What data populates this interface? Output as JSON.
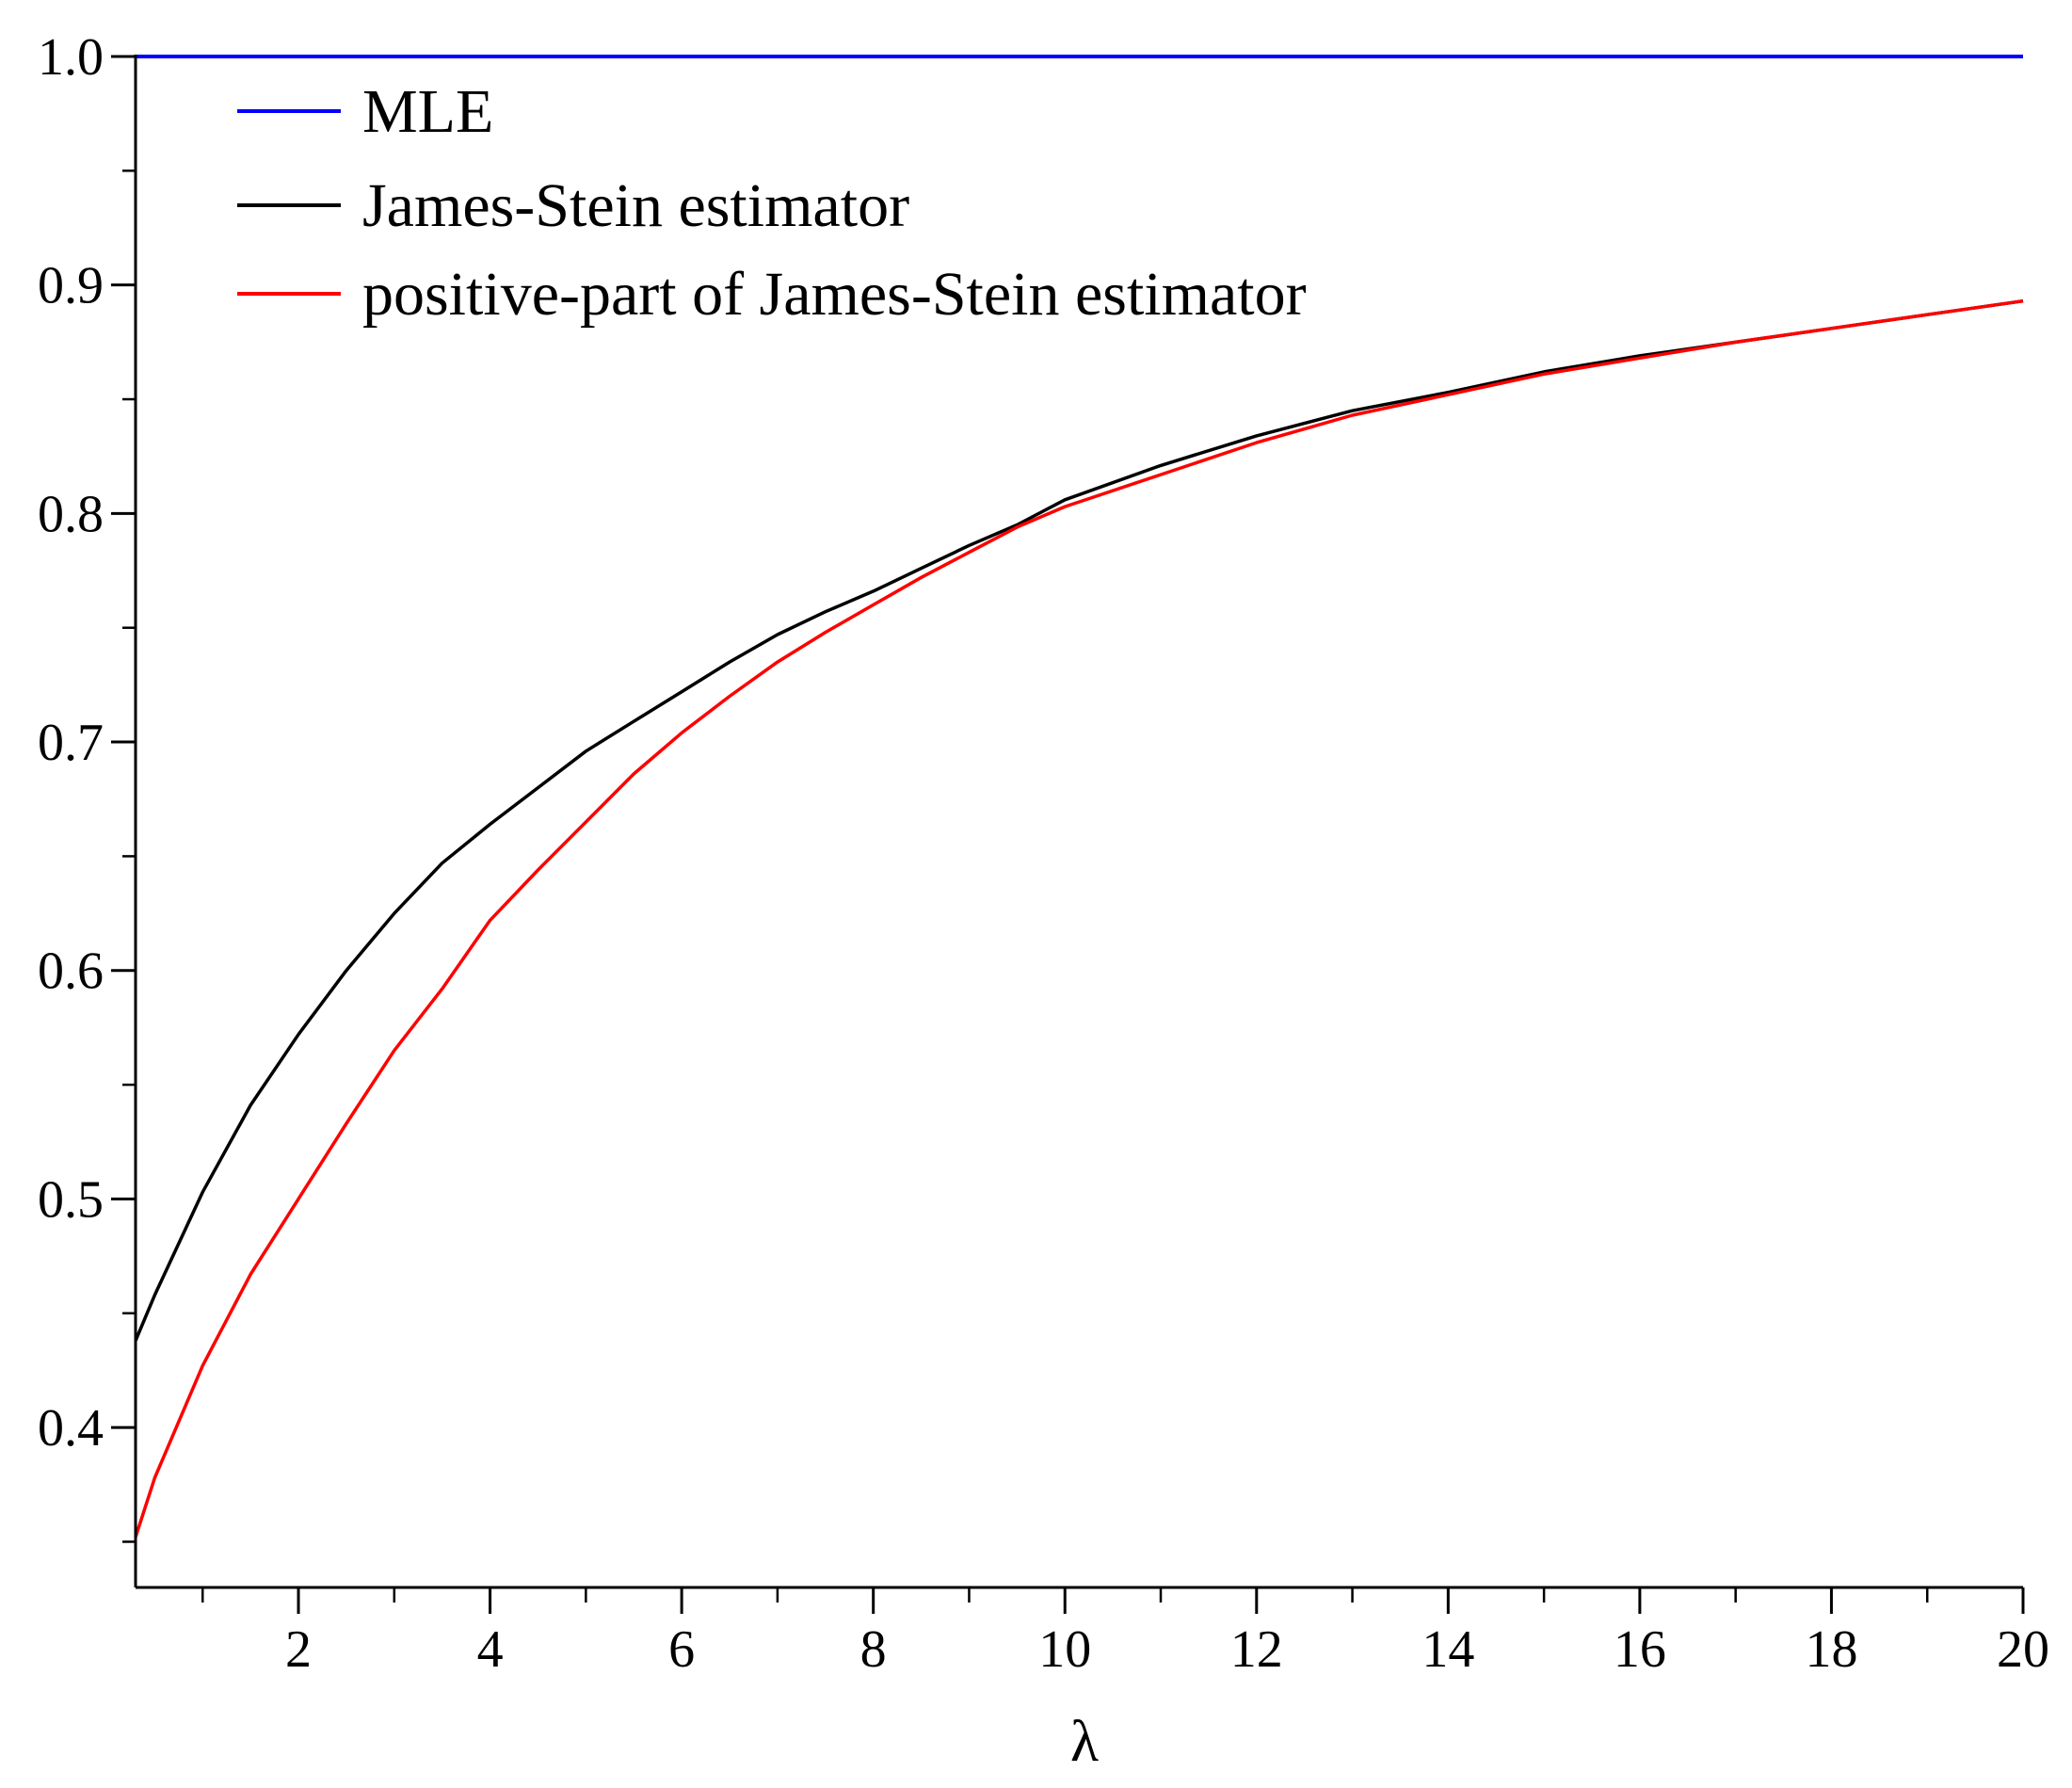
{
  "chart_data": {
    "type": "line",
    "xlabel": "λ",
    "ylabel": "",
    "xlim": [
      0.3,
      20
    ],
    "ylim": [
      0.33,
      1.0
    ],
    "x_ticks": [
      {
        "value": 2,
        "label": "2"
      },
      {
        "value": 4,
        "label": "4"
      },
      {
        "value": 6,
        "label": "6"
      },
      {
        "value": 8,
        "label": "8"
      },
      {
        "value": 10,
        "label": "10"
      },
      {
        "value": 12,
        "label": "12"
      },
      {
        "value": 14,
        "label": "14"
      },
      {
        "value": 16,
        "label": "16"
      },
      {
        "value": 18,
        "label": "18"
      },
      {
        "value": 20,
        "label": "20"
      }
    ],
    "x_minor_ticks": [
      1,
      3,
      5,
      7,
      9,
      11,
      13,
      15,
      17,
      19
    ],
    "y_ticks": [
      {
        "value": 0.4,
        "label": "0.4"
      },
      {
        "value": 0.5,
        "label": "0.5"
      },
      {
        "value": 0.6,
        "label": "0.6"
      },
      {
        "value": 0.7,
        "label": "0.7"
      },
      {
        "value": 0.8,
        "label": "0.8"
      },
      {
        "value": 0.9,
        "label": "0.9"
      },
      {
        "value": 1.0,
        "label": "1.0"
      }
    ],
    "y_minor_ticks": [
      0.35,
      0.45,
      0.55,
      0.65,
      0.75,
      0.85,
      0.95
    ],
    "grid": false,
    "legend_position": "top-left",
    "series": [
      {
        "name": "MLE",
        "color": "#0000ff",
        "x": [
          0.3,
          20
        ],
        "y": [
          1.0,
          1.0
        ]
      },
      {
        "name": "James-Stein estimator",
        "color": "#000000",
        "x": [
          0.3,
          0.5,
          1,
          1.5,
          2,
          2.5,
          3,
          3.5,
          4,
          4.5,
          5,
          5.5,
          6,
          6.5,
          7,
          7.5,
          8,
          8.5,
          9,
          9.5,
          10,
          11,
          12,
          13,
          14,
          15,
          16,
          17,
          18,
          19,
          20
        ],
        "y": [
          0.438,
          0.458,
          0.503,
          0.541,
          0.572,
          0.6,
          0.625,
          0.647,
          0.664,
          0.68,
          0.696,
          0.709,
          0.722,
          0.735,
          0.747,
          0.757,
          0.766,
          0.776,
          0.786,
          0.795,
          0.806,
          0.821,
          0.834,
          0.845,
          0.853,
          0.862,
          0.869,
          0.875,
          0.881,
          0.887,
          0.893
        ]
      },
      {
        "name": "positive-part of James-Stein estimator",
        "color": "#ff0000",
        "x": [
          0.3,
          0.5,
          1,
          1.5,
          2,
          2.5,
          3,
          3.5,
          4,
          4.5,
          5,
          5.5,
          6,
          6.5,
          7,
          7.5,
          8,
          8.5,
          9,
          9.5,
          10,
          11,
          12,
          13,
          14,
          15,
          16,
          17,
          18,
          19,
          20
        ],
        "y": [
          0.352,
          0.378,
          0.427,
          0.467,
          0.5,
          0.533,
          0.565,
          0.592,
          0.622,
          0.644,
          0.665,
          0.686,
          0.704,
          0.72,
          0.735,
          0.748,
          0.76,
          0.772,
          0.783,
          0.794,
          0.803,
          0.817,
          0.831,
          0.843,
          0.852,
          0.861,
          0.868,
          0.875,
          0.881,
          0.887,
          0.893
        ]
      }
    ]
  }
}
